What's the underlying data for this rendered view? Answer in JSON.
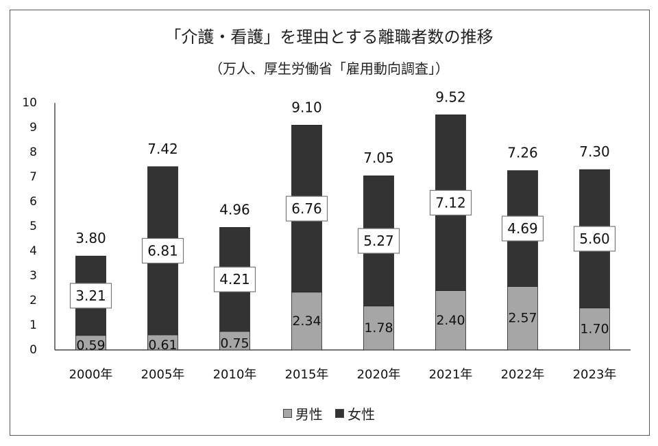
{
  "chart_data": {
    "type": "bar",
    "stacked": true,
    "title": "「介護・看護」を理由とする離職者数の推移",
    "subtitle": "（万人、厚生労働省「雇用動向調査」）",
    "categories": [
      "2000年",
      "2005年",
      "2010年",
      "2015年",
      "2020年",
      "2021年",
      "2022年",
      "2023年"
    ],
    "series": [
      {
        "name": "男性",
        "color": "#a6a6a6",
        "values": [
          0.59,
          0.61,
          0.75,
          2.34,
          1.78,
          2.4,
          2.57,
          1.7
        ],
        "labels": [
          "0.59",
          "0.61",
          "0.75",
          "2.34",
          "1.78",
          "2.40",
          "2.57",
          "1.70"
        ]
      },
      {
        "name": "女性",
        "color": "#333333",
        "values": [
          3.21,
          6.81,
          4.21,
          6.76,
          5.27,
          7.12,
          4.69,
          5.6
        ],
        "labels": [
          "3.21",
          "6.81",
          "4.21",
          "6.76",
          "5.27",
          "7.12",
          "4.69",
          "5.60"
        ]
      }
    ],
    "totals": [
      3.8,
      7.42,
      4.96,
      9.1,
      7.05,
      9.52,
      7.26,
      7.3
    ],
    "total_labels": [
      "3.80",
      "7.42",
      "4.96",
      "9.10",
      "7.05",
      "9.52",
      "7.26",
      "7.30"
    ],
    "ylim": [
      0,
      10
    ],
    "yticks": [
      "0",
      "1",
      "2",
      "3",
      "4",
      "5",
      "6",
      "7",
      "8",
      "9",
      "10"
    ],
    "xlabel": "",
    "ylabel": "",
    "grid": false,
    "legend_position": "bottom"
  }
}
